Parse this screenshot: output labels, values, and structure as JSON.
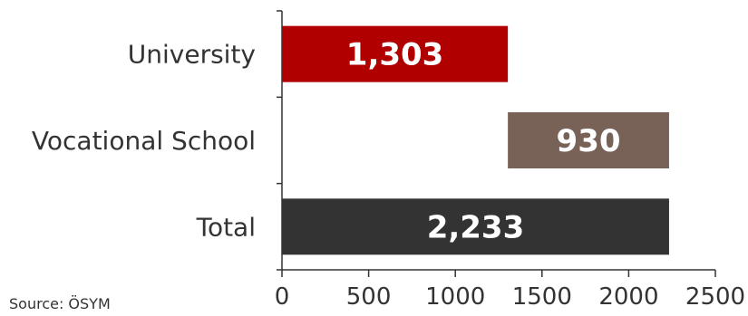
{
  "chart_data": {
    "type": "bar",
    "orientation": "horizontal",
    "stacked": "waterfall",
    "categories": [
      "University",
      "Vocational School",
      "Total"
    ],
    "values": [
      1303,
      930,
      2233
    ],
    "offsets": [
      0,
      1303,
      0
    ],
    "data_labels": [
      "1,303",
      "930",
      "2,233"
    ],
    "colors": [
      "#b00000",
      "#786157",
      "#333333"
    ],
    "xlim": [
      0,
      2500
    ],
    "xticks": [
      "0",
      "500",
      "1000",
      "1500",
      "2000",
      "2500"
    ],
    "grid": false,
    "legend": "none"
  },
  "source": "Source: ÖSYM"
}
